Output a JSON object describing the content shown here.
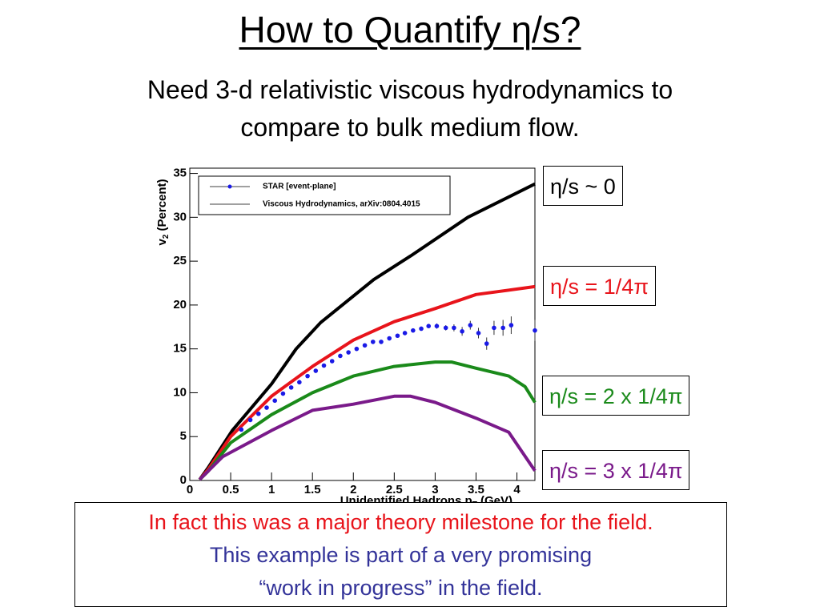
{
  "slide": {
    "title": "How to Quantify η/s?",
    "subtitle": [
      "Need 3-d relativistic viscous hydrodynamics to",
      "compare to bulk medium flow."
    ],
    "callout": [
      "In fact this was a major theory milestone for the field.",
      "This example is part of a very promising",
      "“work in progress” in the field."
    ]
  },
  "chart_data": {
    "type": "line",
    "ylabel": {
      "main": "v",
      "sub": "2",
      "rest": " (Percent)"
    },
    "xlabel": {
      "main": "Unidentified Hadrons p",
      "sub": "T",
      "rest": " (GeV)"
    },
    "xlim": [
      0,
      4.22
    ],
    "ylim": [
      0,
      35.6
    ],
    "xticks": [
      0,
      0.5,
      1,
      1.5,
      2,
      2.5,
      3,
      3.5,
      4
    ],
    "yticks": [
      0,
      5,
      10,
      15,
      20,
      25,
      30,
      35
    ],
    "legend": [
      {
        "name": "STAR [event-plane]",
        "color": "#1a1ae6"
      },
      {
        "name": "Viscous Hydrodynamics, arXiv:0804.4015",
        "color": "#000000"
      }
    ],
    "series": [
      {
        "name": "η/s ~ 0",
        "color": "#000000",
        "x": [
          0.12,
          0.22,
          0.52,
          1.0,
          1.3,
          1.6,
          2.25,
          2.7,
          3.4,
          4.22
        ],
        "values": [
          0.1,
          1.4,
          5.7,
          11,
          15,
          18,
          22.9,
          25.6,
          30,
          33.8
        ]
      },
      {
        "name": "η/s = 1/4π",
        "color": "#e8141b",
        "x": [
          0.12,
          0.22,
          0.5,
          0.75,
          1.0,
          1.5,
          2.0,
          2.5,
          3.0,
          3.5,
          4.22
        ],
        "values": [
          0.1,
          1.2,
          5,
          7.3,
          9.6,
          13,
          16,
          18.1,
          19.6,
          21.2,
          22.1
        ]
      },
      {
        "name": "η/s = 2 x 1/4π",
        "color": "#1a8a1a",
        "x": [
          0.12,
          0.22,
          0.5,
          1.0,
          1.5,
          2.0,
          2.5,
          3.0,
          3.2,
          3.5,
          3.9,
          4.1,
          4.22
        ],
        "values": [
          0.1,
          1,
          4.3,
          7.5,
          10,
          11.9,
          13,
          13.5,
          13.5,
          12.8,
          11.9,
          10.7,
          8.9
        ]
      },
      {
        "name": "η/s = 3 x 1/4π",
        "color": "#7a1a8a",
        "x": [
          0.12,
          0.4,
          1.0,
          1.5,
          2.0,
          2.5,
          2.7,
          3.0,
          3.5,
          3.9,
          4.22
        ],
        "values": [
          0.1,
          2.7,
          5.7,
          8,
          8.7,
          9.6,
          9.6,
          8.9,
          7.1,
          5.5,
          1.1
        ]
      }
    ],
    "points": {
      "name": "STAR [event-plane]",
      "color": "#1a1ae6",
      "x": [
        0.63,
        0.74,
        0.84,
        0.94,
        1.04,
        1.14,
        1.24,
        1.34,
        1.44,
        1.54,
        1.64,
        1.74,
        1.84,
        1.94,
        2.04,
        2.14,
        2.24,
        2.34,
        2.44,
        2.54,
        2.63,
        2.73,
        2.83,
        2.92,
        3.02,
        3.13,
        3.23,
        3.33,
        3.43,
        3.53,
        3.63,
        3.72,
        3.83,
        3.93,
        4.22
      ],
      "values": [
        5.8,
        6.9,
        7.6,
        8.3,
        9.1,
        9.9,
        10.6,
        11.2,
        11.9,
        12.5,
        13.1,
        13.6,
        14.2,
        14.6,
        15,
        15.4,
        15.8,
        15.8,
        16.2,
        16.5,
        16.8,
        17.1,
        17.3,
        17.6,
        17.6,
        17.4,
        17.4,
        17,
        17.7,
        16.8,
        15.6,
        17.4,
        17.4,
        17.7,
        17.1
      ],
      "errors": [
        0.1,
        0.1,
        0.1,
        0.1,
        0.1,
        0.1,
        0.1,
        0.1,
        0.1,
        0.1,
        0.1,
        0.1,
        0.1,
        0.1,
        0.1,
        0.1,
        0.1,
        0.1,
        0.2,
        0.2,
        0.2,
        0.2,
        0.2,
        0.2,
        0.3,
        0.3,
        0.4,
        0.5,
        0.5,
        0.6,
        0.7,
        0.8,
        0.9,
        1.0,
        1.2
      ]
    }
  }
}
